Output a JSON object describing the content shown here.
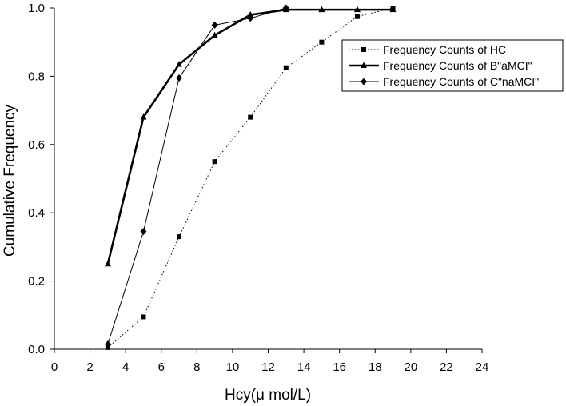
{
  "chart_data": {
    "type": "line",
    "title": "",
    "xlabel": "Hcy(μ mol/L)",
    "ylabel": "Cumulative Frequency",
    "xlim": [
      0,
      24
    ],
    "ylim": [
      0,
      1.0
    ],
    "x_ticks": [
      0,
      2,
      4,
      6,
      8,
      10,
      12,
      14,
      16,
      18,
      20,
      22,
      24
    ],
    "y_ticks": [
      0.0,
      0.2,
      0.4,
      0.6,
      0.8,
      1.0
    ],
    "x_tick_labels": [
      "0",
      "2",
      "4",
      "6",
      "8",
      "10",
      "12",
      "14",
      "16",
      "18",
      "20",
      "22",
      "24"
    ],
    "y_tick_labels": [
      "0.0",
      "0.2",
      "0.4",
      "0.6",
      "0.8",
      "1.0"
    ],
    "grid": false,
    "legend_position": "top-right",
    "series": [
      {
        "name": "Frequency Counts of HC",
        "marker": "square",
        "line_style": "dotted",
        "color": "#000000",
        "x": [
          3,
          5,
          7,
          9,
          11,
          13,
          15,
          17,
          19
        ],
        "y": [
          0.005,
          0.095,
          0.33,
          0.55,
          0.68,
          0.825,
          0.9,
          0.975,
          1.0
        ]
      },
      {
        "name": "Frequency Counts of B\"aMCI\"",
        "marker": "triangle",
        "line_style": "thick",
        "color": "#000000",
        "x": [
          3,
          5,
          7,
          9,
          11,
          13,
          15,
          17,
          19
        ],
        "y": [
          0.25,
          0.68,
          0.835,
          0.92,
          0.98,
          0.995,
          0.995,
          0.995,
          0.995
        ]
      },
      {
        "name": "Frequency Counts of C\"naMCI\"",
        "marker": "diamond",
        "line_style": "thin",
        "color": "#000000",
        "x": [
          3,
          5,
          7,
          9,
          11,
          13
        ],
        "y": [
          0.015,
          0.345,
          0.795,
          0.95,
          0.97,
          1.0
        ]
      }
    ]
  }
}
